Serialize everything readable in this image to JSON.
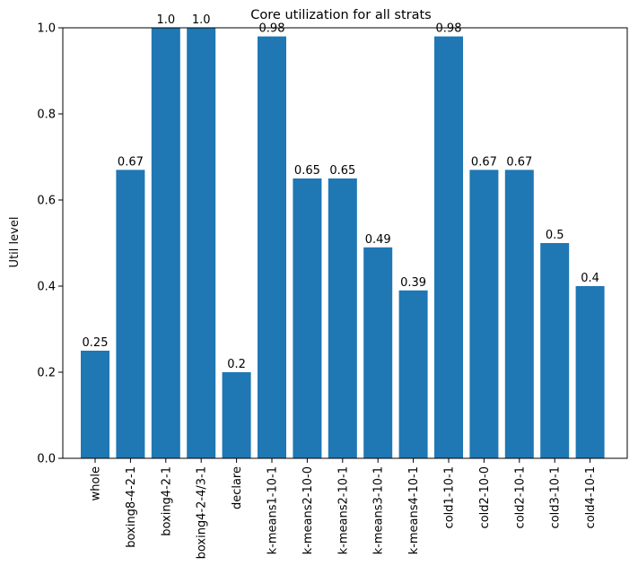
{
  "chart_data": {
    "type": "bar",
    "title": "Core utilization for all strats",
    "xlabel": "",
    "ylabel": "Util level",
    "ylim": [
      0,
      1.0
    ],
    "yticks": [
      "0.0",
      "0.2",
      "0.4",
      "0.6",
      "0.8",
      "1.0"
    ],
    "grid": false,
    "bar_color": "#1f77b4",
    "categories": [
      "whole",
      "boxing8-4-2-1",
      "boxing4-2-1",
      "boxing4-2-4/3-1",
      "declare",
      "k-means1-10-1",
      "k-means2-10-0",
      "k-means2-10-1",
      "k-means3-10-1",
      "k-means4-10-1",
      "cold1-10-1",
      "cold2-10-0",
      "cold2-10-1",
      "cold3-10-1",
      "cold4-10-1"
    ],
    "values": [
      0.25,
      0.67,
      1.0,
      1.0,
      0.2,
      0.98,
      0.65,
      0.65,
      0.49,
      0.39,
      0.98,
      0.67,
      0.67,
      0.5,
      0.4
    ],
    "data_labels": [
      "0.25",
      "0.67",
      "1.0",
      "1.0",
      "0.2",
      "0.98",
      "0.65",
      "0.65",
      "0.49",
      "0.39",
      "0.98",
      "0.67",
      "0.67",
      "0.5",
      "0.4"
    ]
  }
}
